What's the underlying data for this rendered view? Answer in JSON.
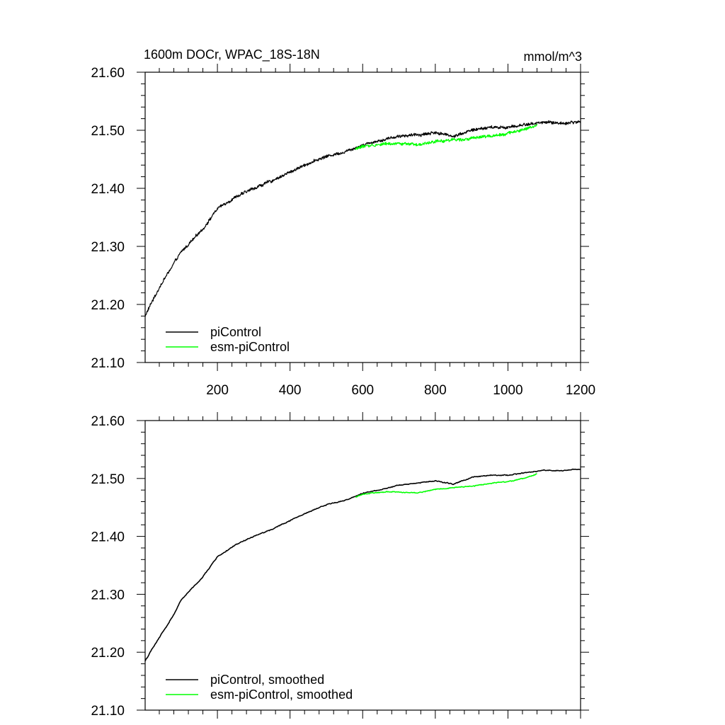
{
  "chart_data": [
    {
      "type": "line",
      "title": "1600m DOCr, WPAC_18S-18N",
      "units": "mmol/m^3",
      "xlim": [
        1,
        1200
      ],
      "ylim": [
        21.1,
        21.6
      ],
      "yticks": [
        "21.10",
        "21.20",
        "21.30",
        "21.40",
        "21.50",
        "21.60"
      ],
      "xticks": [
        "200",
        "400",
        "600",
        "800",
        "1000",
        "1200"
      ],
      "legend_position": "bottom-left",
      "series": [
        {
          "name": "piControl",
          "color": "#000000",
          "x": [
            1,
            20,
            50,
            80,
            100,
            130,
            160,
            200,
            250,
            300,
            350,
            400,
            450,
            500,
            550,
            600,
            650,
            700,
            750,
            800,
            850,
            900,
            950,
            1000,
            1050,
            1100,
            1150,
            1200
          ],
          "values": [
            21.18,
            21.205,
            21.24,
            21.27,
            21.29,
            21.31,
            21.33,
            21.365,
            21.385,
            21.4,
            21.413,
            21.428,
            21.443,
            21.455,
            21.463,
            21.475,
            21.483,
            21.49,
            21.492,
            21.496,
            21.49,
            21.5,
            21.505,
            21.505,
            21.51,
            21.514,
            21.512,
            21.515
          ]
        },
        {
          "name": "esm-piControl",
          "color": "#00ff00",
          "x": [
            580,
            600,
            650,
            700,
            750,
            800,
            850,
            900,
            950,
            1000,
            1050,
            1080
          ],
          "values": [
            21.468,
            21.472,
            21.476,
            21.478,
            21.474,
            21.48,
            21.484,
            21.486,
            21.49,
            21.495,
            21.502,
            21.508
          ]
        }
      ]
    },
    {
      "type": "line",
      "title": "",
      "xlim": [
        1,
        1200
      ],
      "ylim": [
        21.1,
        21.6
      ],
      "yticks": [
        "21.10",
        "21.20",
        "21.30",
        "21.40",
        "21.50",
        "21.60"
      ],
      "legend_position": "bottom-left",
      "series": [
        {
          "name": "piControl, smoothed",
          "color": "#000000",
          "x": [
            1,
            20,
            50,
            80,
            100,
            130,
            160,
            200,
            250,
            300,
            350,
            400,
            450,
            500,
            550,
            600,
            650,
            700,
            750,
            800,
            850,
            900,
            950,
            1000,
            1050,
            1100,
            1150,
            1200
          ],
          "values": [
            21.185,
            21.205,
            21.235,
            21.265,
            21.29,
            21.31,
            21.33,
            21.365,
            21.385,
            21.4,
            21.412,
            21.427,
            21.442,
            21.455,
            21.462,
            21.474,
            21.481,
            21.489,
            21.492,
            21.496,
            21.49,
            21.502,
            21.505,
            21.506,
            21.51,
            21.514,
            21.513,
            21.516
          ]
        },
        {
          "name": "esm-piControl, smoothed",
          "color": "#00ff00",
          "x": [
            580,
            600,
            650,
            700,
            750,
            800,
            850,
            900,
            950,
            1000,
            1050,
            1080
          ],
          "values": [
            21.468,
            21.473,
            21.476,
            21.477,
            21.475,
            21.481,
            21.484,
            21.487,
            21.491,
            21.495,
            21.501,
            21.508
          ]
        }
      ]
    }
  ]
}
